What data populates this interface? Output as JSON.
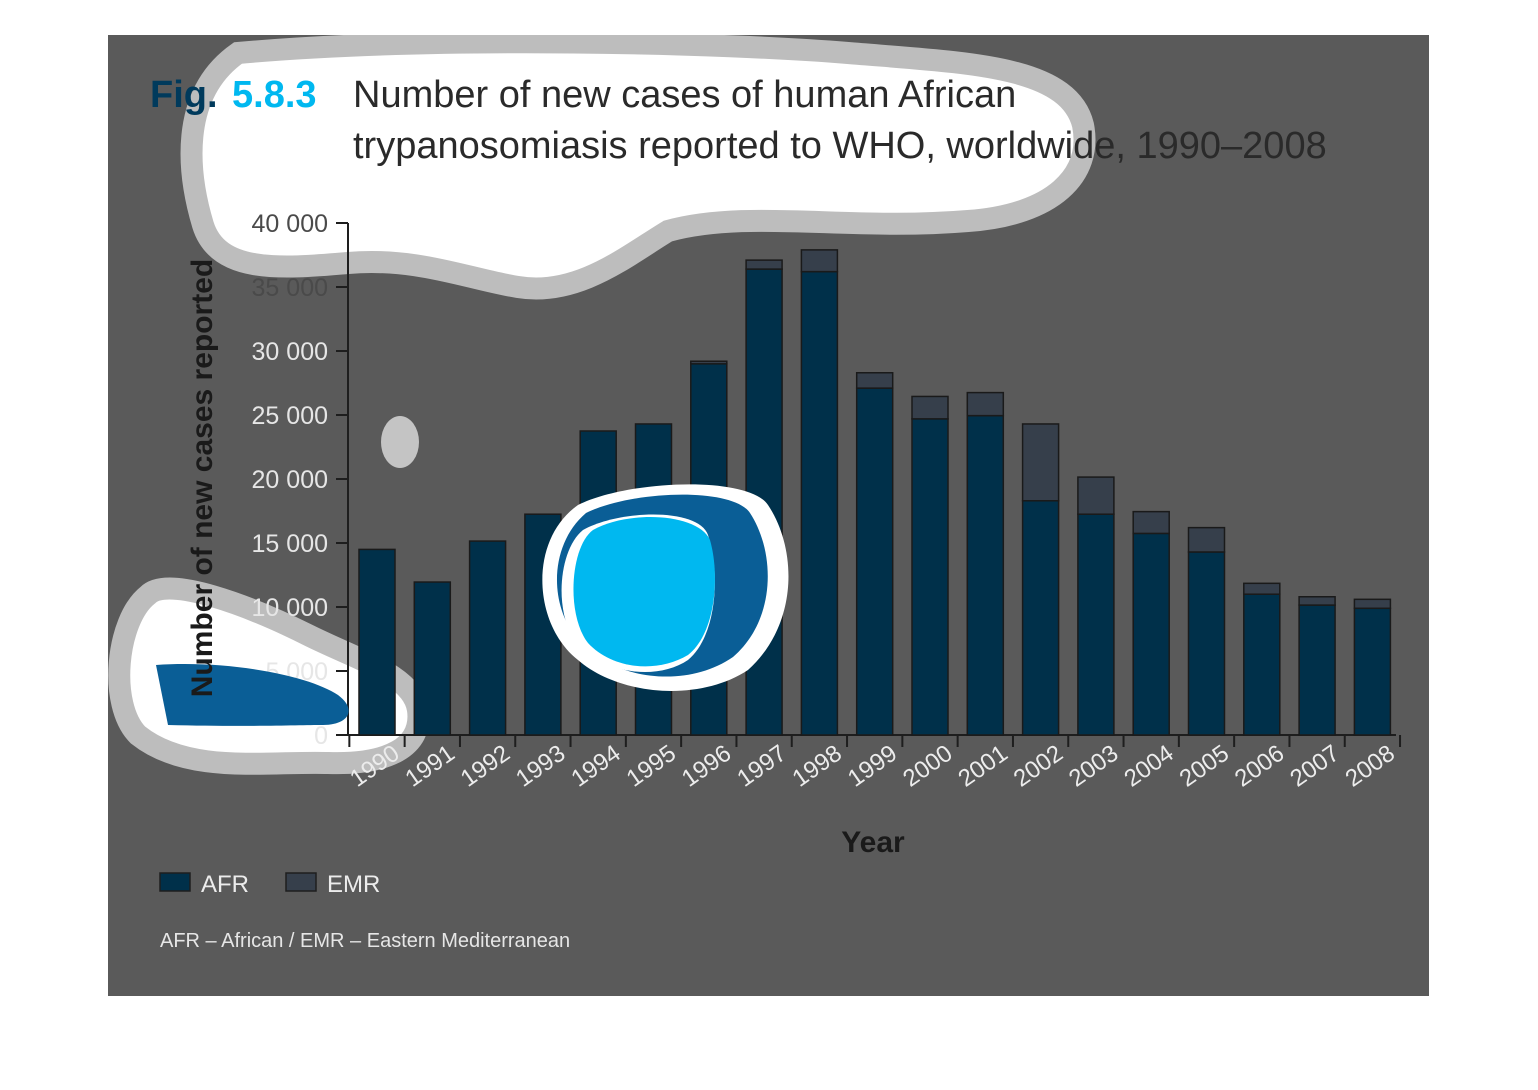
{
  "figure": {
    "label": "Fig.",
    "number": "5.8.3",
    "title_line1": "Number of new cases of human African",
    "title_line2": "trypanosomiasis reported to WHO, worldwide, 1990–2008"
  },
  "note": "AFR – African / EMR – Eastern Mediterranean",
  "colors": {
    "afr": "#00304a",
    "emr": "#363f4b",
    "panel": "#5a5a5a",
    "highlight": "#00b8f0"
  },
  "chart_data": {
    "type": "bar",
    "stacked": true,
    "title": "Number of new cases of human African trypanosomiasis reported to WHO, worldwide, 1990–2008",
    "xlabel": "Year",
    "ylabel": "Number of new cases reported",
    "ylim": [
      0,
      40000
    ],
    "yticks": [
      {
        "value": 0,
        "label": "0"
      },
      {
        "value": 5000,
        "label": "5 000"
      },
      {
        "value": 10000,
        "label": "10 000"
      },
      {
        "value": 15000,
        "label": "15 000"
      },
      {
        "value": 20000,
        "label": "20 000"
      },
      {
        "value": 25000,
        "label": "25 000"
      },
      {
        "value": 30000,
        "label": "30 000"
      },
      {
        "value": 35000,
        "label": "35 000"
      },
      {
        "value": 40000,
        "label": "40 000"
      }
    ],
    "categories": [
      "1990",
      "1991",
      "1992",
      "1993",
      "1994",
      "1995",
      "1996",
      "1997",
      "1998",
      "1999",
      "2000",
      "2001",
      "2002",
      "2003",
      "2004",
      "2005",
      "2006",
      "2007",
      "2008"
    ],
    "series": [
      {
        "name": "AFR",
        "values": [
          14500,
          11950,
          15150,
          17250,
          23750,
          24300,
          29000,
          36400,
          36200,
          27100,
          24700,
          24950,
          18300,
          17250,
          15750,
          14300,
          11000,
          10150,
          9900
        ]
      },
      {
        "name": "EMR",
        "values": [
          0,
          0,
          0,
          0,
          0,
          0,
          200,
          700,
          1700,
          1200,
          1750,
          1800,
          6000,
          2900,
          1700,
          1900,
          850,
          650,
          700
        ]
      }
    ],
    "legend": {
      "position": "bottom-left",
      "entries": [
        "AFR",
        "EMR"
      ]
    },
    "grid": false
  }
}
